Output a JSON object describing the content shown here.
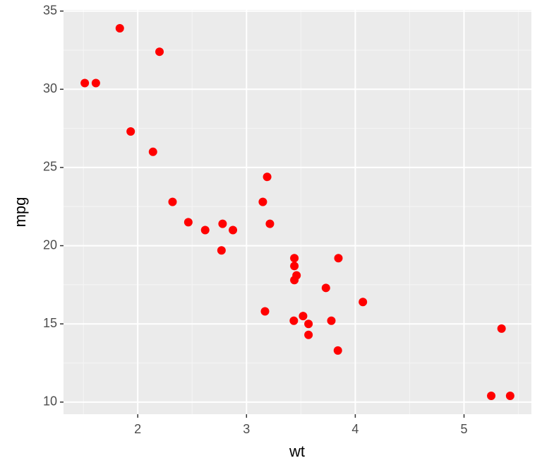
{
  "chart_data": {
    "type": "scatter",
    "x_label": "wt",
    "y_label": "mpg",
    "series": [
      {
        "color": "#ff0000",
        "x": [
          2.62,
          2.875,
          2.32,
          3.215,
          3.44,
          3.46,
          3.57,
          3.19,
          3.15,
          3.44,
          3.44,
          4.07,
          3.73,
          3.78,
          5.25,
          5.424,
          5.345,
          2.2,
          1.615,
          1.835,
          2.465,
          3.52,
          3.435,
          3.84,
          3.845,
          1.935,
          2.14,
          1.513,
          3.17,
          2.77,
          3.57,
          2.78
        ],
        "values": [
          21.0,
          21.0,
          22.8,
          21.4,
          18.7,
          18.1,
          14.3,
          24.4,
          22.8,
          19.2,
          17.8,
          16.4,
          17.3,
          15.2,
          10.4,
          10.4,
          14.7,
          32.4,
          30.4,
          33.9,
          21.5,
          15.5,
          15.2,
          13.3,
          19.2,
          27.3,
          26.0,
          30.4,
          15.8,
          19.7,
          15.0,
          21.4
        ]
      }
    ],
    "xlim": [
      1.31745,
      5.61955
    ],
    "xticks": [
      2,
      3,
      4,
      5
    ],
    "ylim": [
      9.225,
      35.075
    ],
    "yticks": [
      10,
      15,
      20,
      25,
      30,
      35
    ],
    "grid": true
  }
}
